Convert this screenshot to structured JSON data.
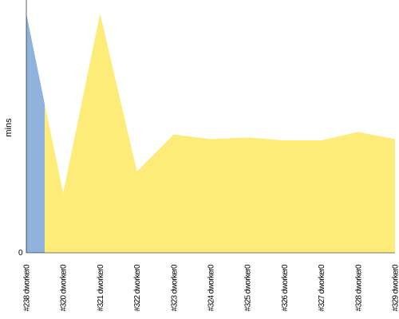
{
  "chart_data": {
    "type": "area",
    "ylabel": "mins",
    "y_tick_labels": [
      "0"
    ],
    "ylim": [
      0,
      100
    ],
    "grid": false,
    "categories": [
      "#238 dworker0",
      "#320 dworker0",
      "#321 dworker0",
      "#322 dworker0",
      "#323 dworker0",
      "#324 dworker0",
      "#325 dworker0",
      "#326 dworker0",
      "#327 dworker0",
      "#328 dworker0",
      "#329 dworker0"
    ],
    "series": [
      {
        "color": "#8fb3dc",
        "points": [
          {
            "x": 0,
            "y": 100
          },
          {
            "x": 0.5,
            "y": 62
          }
        ]
      },
      {
        "color": "#feec78",
        "points": [
          {
            "x": 0.5,
            "y": 62
          },
          {
            "x": 1,
            "y": 25
          },
          {
            "x": 2,
            "y": 100
          },
          {
            "x": 3,
            "y": 34
          },
          {
            "x": 4,
            "y": 49.5
          },
          {
            "x": 5,
            "y": 47.5
          },
          {
            "x": 6,
            "y": 48.2
          },
          {
            "x": 7,
            "y": 47
          },
          {
            "x": 8,
            "y": 47
          },
          {
            "x": 9,
            "y": 50.5
          },
          {
            "x": 10,
            "y": 47.5
          }
        ]
      }
    ]
  }
}
